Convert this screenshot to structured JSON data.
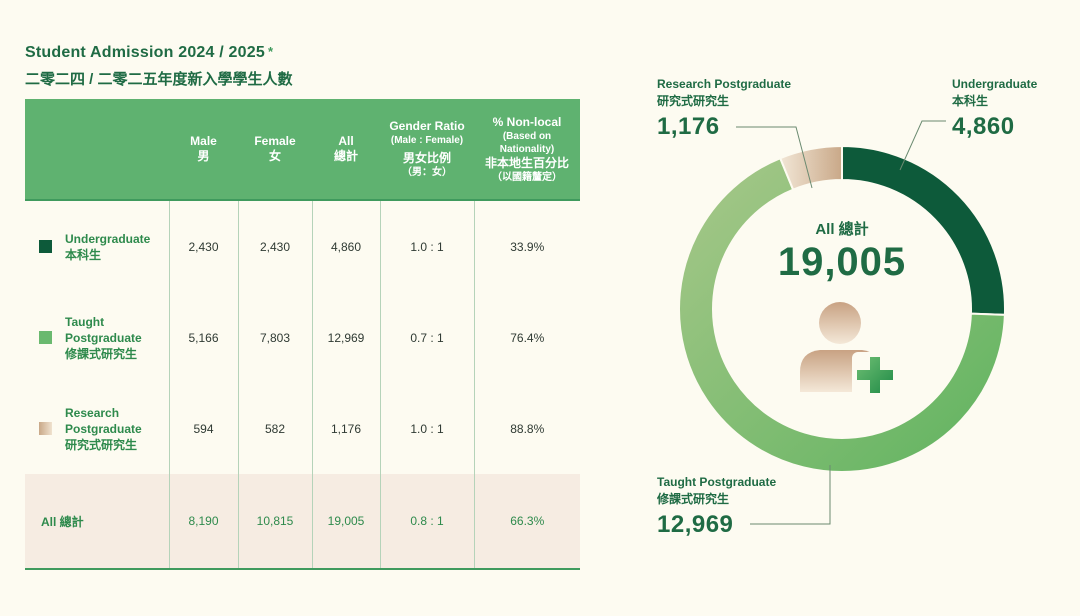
{
  "header": {
    "title_en": "Student Admission 2024 / 2025",
    "title_mark": "*",
    "title_zh": "二零二四 / 二零二五年度新入學學生人數"
  },
  "table": {
    "columns": [
      {
        "en": "Male",
        "zh": "男"
      },
      {
        "en": "Female",
        "zh": "女"
      },
      {
        "en": "All",
        "zh": "總計"
      },
      {
        "en": "Gender Ratio",
        "sub": "(Male : Female)",
        "zh": "男女比例",
        "zh_sub": "（男：女）"
      },
      {
        "en": "% Non-local",
        "sub": "(Based on Nationality)",
        "zh": "非本地生百分比",
        "zh_sub": "（以國籍釐定）"
      }
    ],
    "rows": [
      {
        "label_en": "Undergraduate",
        "label_zh": "本科生",
        "swatch": "#0d5a3a",
        "male": "2,430",
        "female": "2,430",
        "all": "4,860",
        "ratio": "1.0 : 1",
        "nonlocal": "33.9%"
      },
      {
        "label_en": "Taught Postgraduate",
        "label_zh": "修課式研究生",
        "swatch": "#6ab96f",
        "male": "5,166",
        "female": "7,803",
        "all": "12,969",
        "ratio": "0.7 : 1",
        "nonlocal": "76.4%"
      },
      {
        "label_en": "Research Postgraduate",
        "label_zh": "研究式研究生",
        "swatch": "#d9c4a8",
        "male": "594",
        "female": "582",
        "all": "1,176",
        "ratio": "1.0 : 1",
        "nonlocal": "88.8%"
      }
    ],
    "total": {
      "label": "All 總計",
      "male": "8,190",
      "female": "10,815",
      "all": "19,005",
      "ratio": "0.8 : 1",
      "nonlocal": "66.3%"
    }
  },
  "donut": {
    "center_label": "All 總計",
    "center_value": "19,005",
    "icon": "person-add-icon",
    "callouts": {
      "research": {
        "en": "Research Postgraduate",
        "zh": "研究式研究生",
        "num": "1,176"
      },
      "undergrad": {
        "en": "Undergraduate",
        "zh": "本科生",
        "num": "4,860"
      },
      "taught": {
        "en": "Taught Postgraduate",
        "zh": "修課式研究生",
        "num": "12,969"
      }
    }
  },
  "chart_data": {
    "type": "pie",
    "title": "Student Admission 2024 / 2025",
    "categories": [
      "Undergraduate",
      "Taught Postgraduate",
      "Research Postgraduate"
    ],
    "values": [
      4860,
      12969,
      1176
    ],
    "total": 19005,
    "colors": [
      "#0d5a3a",
      "#6ab96f",
      "#d9c4a8"
    ]
  }
}
